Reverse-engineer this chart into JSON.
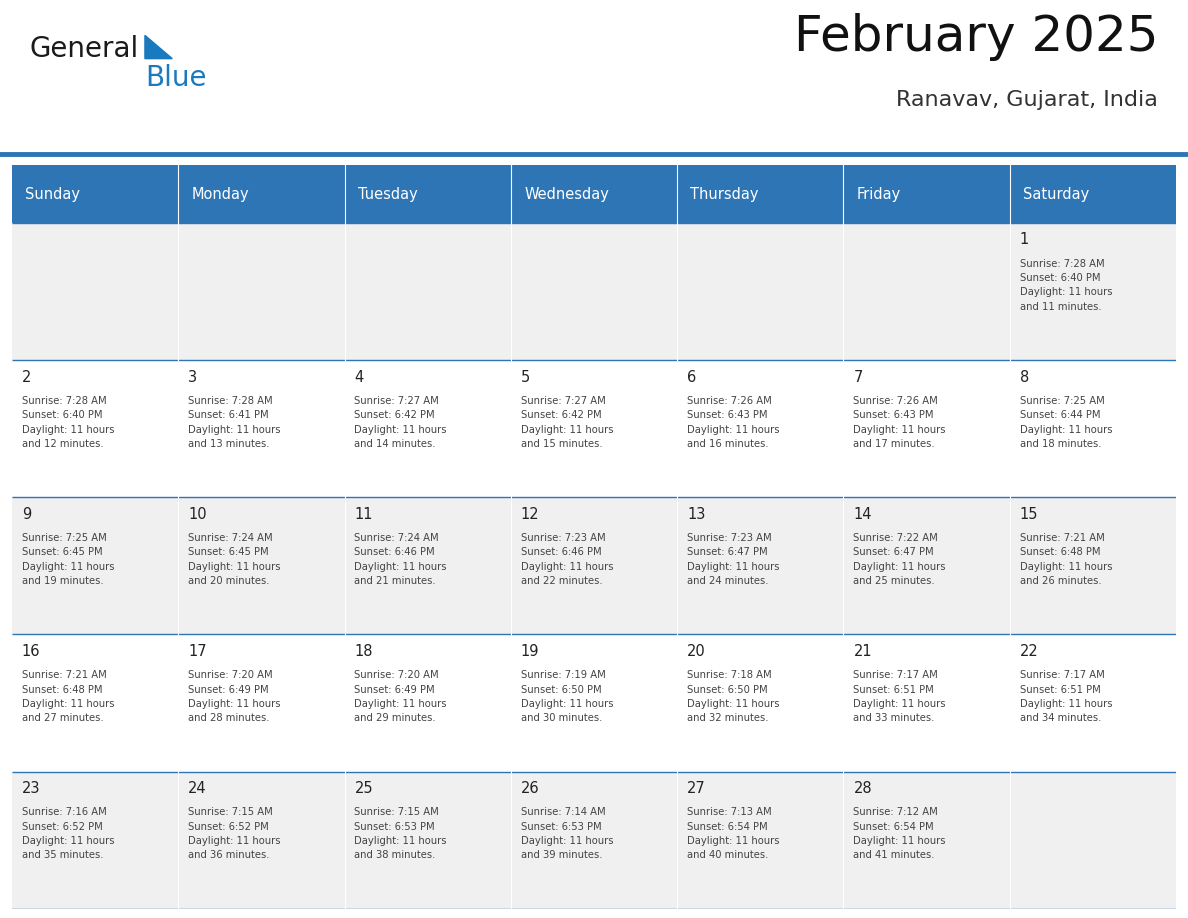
{
  "title": "February 2025",
  "subtitle": "Ranavav, Gujarat, India",
  "title_fontsize": 36,
  "subtitle_fontsize": 16,
  "header_color": "#2E75B6",
  "header_text_color": "#FFFFFF",
  "cell_bg_color": "#FFFFFF",
  "alt_row_bg": "#F0F0F0",
  "border_color": "#2E75B6",
  "day_names": [
    "Sunday",
    "Monday",
    "Tuesday",
    "Wednesday",
    "Thursday",
    "Friday",
    "Saturday"
  ],
  "weeks": [
    [
      {
        "day": "",
        "info": ""
      },
      {
        "day": "",
        "info": ""
      },
      {
        "day": "",
        "info": ""
      },
      {
        "day": "",
        "info": ""
      },
      {
        "day": "",
        "info": ""
      },
      {
        "day": "",
        "info": ""
      },
      {
        "day": "1",
        "info": "Sunrise: 7:28 AM\nSunset: 6:40 PM\nDaylight: 11 hours\nand 11 minutes."
      }
    ],
    [
      {
        "day": "2",
        "info": "Sunrise: 7:28 AM\nSunset: 6:40 PM\nDaylight: 11 hours\nand 12 minutes."
      },
      {
        "day": "3",
        "info": "Sunrise: 7:28 AM\nSunset: 6:41 PM\nDaylight: 11 hours\nand 13 minutes."
      },
      {
        "day": "4",
        "info": "Sunrise: 7:27 AM\nSunset: 6:42 PM\nDaylight: 11 hours\nand 14 minutes."
      },
      {
        "day": "5",
        "info": "Sunrise: 7:27 AM\nSunset: 6:42 PM\nDaylight: 11 hours\nand 15 minutes."
      },
      {
        "day": "6",
        "info": "Sunrise: 7:26 AM\nSunset: 6:43 PM\nDaylight: 11 hours\nand 16 minutes."
      },
      {
        "day": "7",
        "info": "Sunrise: 7:26 AM\nSunset: 6:43 PM\nDaylight: 11 hours\nand 17 minutes."
      },
      {
        "day": "8",
        "info": "Sunrise: 7:25 AM\nSunset: 6:44 PM\nDaylight: 11 hours\nand 18 minutes."
      }
    ],
    [
      {
        "day": "9",
        "info": "Sunrise: 7:25 AM\nSunset: 6:45 PM\nDaylight: 11 hours\nand 19 minutes."
      },
      {
        "day": "10",
        "info": "Sunrise: 7:24 AM\nSunset: 6:45 PM\nDaylight: 11 hours\nand 20 minutes."
      },
      {
        "day": "11",
        "info": "Sunrise: 7:24 AM\nSunset: 6:46 PM\nDaylight: 11 hours\nand 21 minutes."
      },
      {
        "day": "12",
        "info": "Sunrise: 7:23 AM\nSunset: 6:46 PM\nDaylight: 11 hours\nand 22 minutes."
      },
      {
        "day": "13",
        "info": "Sunrise: 7:23 AM\nSunset: 6:47 PM\nDaylight: 11 hours\nand 24 minutes."
      },
      {
        "day": "14",
        "info": "Sunrise: 7:22 AM\nSunset: 6:47 PM\nDaylight: 11 hours\nand 25 minutes."
      },
      {
        "day": "15",
        "info": "Sunrise: 7:21 AM\nSunset: 6:48 PM\nDaylight: 11 hours\nand 26 minutes."
      }
    ],
    [
      {
        "day": "16",
        "info": "Sunrise: 7:21 AM\nSunset: 6:48 PM\nDaylight: 11 hours\nand 27 minutes."
      },
      {
        "day": "17",
        "info": "Sunrise: 7:20 AM\nSunset: 6:49 PM\nDaylight: 11 hours\nand 28 minutes."
      },
      {
        "day": "18",
        "info": "Sunrise: 7:20 AM\nSunset: 6:49 PM\nDaylight: 11 hours\nand 29 minutes."
      },
      {
        "day": "19",
        "info": "Sunrise: 7:19 AM\nSunset: 6:50 PM\nDaylight: 11 hours\nand 30 minutes."
      },
      {
        "day": "20",
        "info": "Sunrise: 7:18 AM\nSunset: 6:50 PM\nDaylight: 11 hours\nand 32 minutes."
      },
      {
        "day": "21",
        "info": "Sunrise: 7:17 AM\nSunset: 6:51 PM\nDaylight: 11 hours\nand 33 minutes."
      },
      {
        "day": "22",
        "info": "Sunrise: 7:17 AM\nSunset: 6:51 PM\nDaylight: 11 hours\nand 34 minutes."
      }
    ],
    [
      {
        "day": "23",
        "info": "Sunrise: 7:16 AM\nSunset: 6:52 PM\nDaylight: 11 hours\nand 35 minutes."
      },
      {
        "day": "24",
        "info": "Sunrise: 7:15 AM\nSunset: 6:52 PM\nDaylight: 11 hours\nand 36 minutes."
      },
      {
        "day": "25",
        "info": "Sunrise: 7:15 AM\nSunset: 6:53 PM\nDaylight: 11 hours\nand 38 minutes."
      },
      {
        "day": "26",
        "info": "Sunrise: 7:14 AM\nSunset: 6:53 PM\nDaylight: 11 hours\nand 39 minutes."
      },
      {
        "day": "27",
        "info": "Sunrise: 7:13 AM\nSunset: 6:54 PM\nDaylight: 11 hours\nand 40 minutes."
      },
      {
        "day": "28",
        "info": "Sunrise: 7:12 AM\nSunset: 6:54 PM\nDaylight: 11 hours\nand 41 minutes."
      },
      {
        "day": "",
        "info": ""
      }
    ]
  ],
  "logo_general_color": "#1a1a1a",
  "logo_blue_color": "#1a7abf",
  "fig_width": 11.88,
  "fig_height": 9.18,
  "fig_dpi": 100
}
